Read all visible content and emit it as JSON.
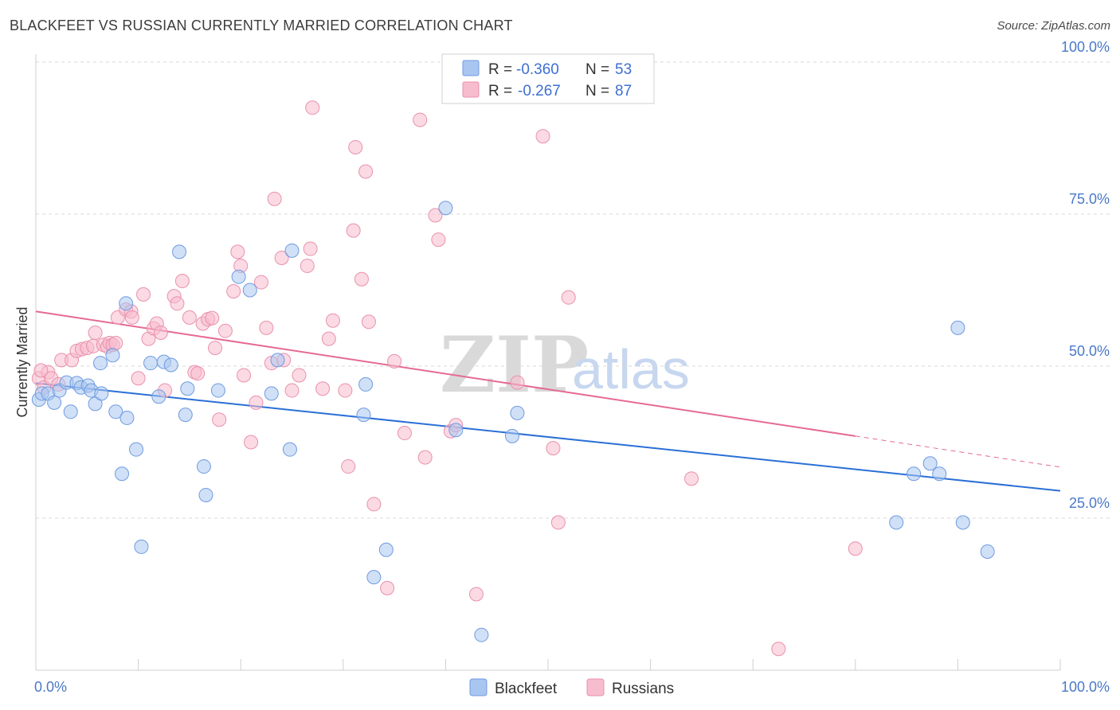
{
  "title": "BLACKFEET VS RUSSIAN CURRENTLY MARRIED CORRELATION CHART",
  "source": "Source: ZipAtlas.com",
  "watermark": {
    "zip": "ZIP",
    "atlas": "atlas"
  },
  "colors": {
    "blackfeet_fill": "#a9c6f0",
    "blackfeet_stroke": "#6f9be0",
    "blackfeet_line": "#2a6fd6",
    "russians_fill": "#f7bccd",
    "russians_stroke": "#e991ad",
    "russians_line": "#e56a95",
    "grid": "#d8d8d8",
    "tick_label": "#4a78c8"
  },
  "legend": {
    "rows": [
      {
        "r_label": "R =",
        "r_value": "-0.360",
        "n_label": "N =",
        "n_value": "53"
      },
      {
        "r_label": "R =",
        "r_value": "-0.267",
        "n_label": "N =",
        "n_value": "87"
      }
    ]
  },
  "chart_data": {
    "type": "scatter",
    "title": "BLACKFEET VS RUSSIAN CURRENTLY MARRIED CORRELATION CHART",
    "xlabel": "",
    "ylabel": "Currently Married",
    "xlim": [
      0,
      100
    ],
    "ylim": [
      0,
      100
    ],
    "x_tick_labels": [
      "0.0%",
      "100.0%"
    ],
    "y_tick_labels": [
      "25.0%",
      "50.0%",
      "75.0%",
      "100.0%"
    ],
    "y_ticks": [
      25,
      50,
      75,
      100
    ],
    "grid": true,
    "legend_position": "top-center",
    "series": [
      {
        "name": "Blackfeet",
        "r": -0.36,
        "n": 53,
        "trend": {
          "x": [
            0,
            100
          ],
          "y": [
            47.2,
            29.5
          ]
        },
        "points": [
          [
            0.3,
            44.5
          ],
          [
            0.6,
            45.5
          ],
          [
            1.2,
            45.5
          ],
          [
            1.8,
            44.0
          ],
          [
            2.3,
            46.0
          ],
          [
            3.0,
            47.3
          ],
          [
            3.4,
            42.5
          ],
          [
            4.0,
            47.2
          ],
          [
            4.4,
            46.5
          ],
          [
            5.1,
            46.8
          ],
          [
            5.4,
            46.0
          ],
          [
            5.8,
            43.8
          ],
          [
            6.4,
            45.5
          ],
          [
            6.3,
            50.5
          ],
          [
            7.5,
            51.8
          ],
          [
            7.8,
            42.5
          ],
          [
            8.4,
            32.3
          ],
          [
            8.9,
            41.5
          ],
          [
            8.8,
            60.3
          ],
          [
            9.8,
            36.3
          ],
          [
            10.3,
            20.3
          ],
          [
            11.2,
            50.5
          ],
          [
            12.0,
            45.0
          ],
          [
            12.5,
            50.7
          ],
          [
            13.2,
            50.2
          ],
          [
            14.0,
            68.8
          ],
          [
            14.6,
            42.0
          ],
          [
            14.8,
            46.3
          ],
          [
            16.4,
            33.5
          ],
          [
            16.6,
            28.8
          ],
          [
            17.8,
            46.0
          ],
          [
            19.8,
            64.7
          ],
          [
            20.9,
            62.5
          ],
          [
            23.0,
            45.5
          ],
          [
            23.6,
            51.0
          ],
          [
            24.8,
            36.3
          ],
          [
            25.0,
            69.0
          ],
          [
            32.0,
            42.0
          ],
          [
            32.2,
            47.0
          ],
          [
            33.0,
            15.3
          ],
          [
            34.2,
            19.8
          ],
          [
            40.0,
            76.0
          ],
          [
            41.0,
            39.5
          ],
          [
            43.5,
            5.8
          ],
          [
            46.5,
            38.5
          ],
          [
            47.0,
            42.3
          ],
          [
            84.0,
            24.3
          ],
          [
            85.7,
            32.3
          ],
          [
            87.3,
            34.0
          ],
          [
            88.2,
            32.3
          ],
          [
            90.0,
            56.3
          ],
          [
            90.5,
            24.3
          ],
          [
            92.9,
            19.5
          ]
        ]
      },
      {
        "name": "Russians",
        "r": -0.267,
        "n": 87,
        "trend": {
          "x": [
            0,
            80
          ],
          "y": [
            59.0,
            38.5
          ]
        },
        "trend_dashed": {
          "x": [
            80,
            100
          ],
          "y": [
            38.5,
            33.4
          ]
        },
        "points": [
          [
            0.3,
            48.0
          ],
          [
            0.8,
            46.5
          ],
          [
            1.2,
            49.0
          ],
          [
            1.5,
            48.0
          ],
          [
            2.2,
            47.0
          ],
          [
            2.5,
            51.0
          ],
          [
            3.5,
            51.0
          ],
          [
            4.0,
            52.5
          ],
          [
            4.5,
            52.8
          ],
          [
            5.0,
            53.0
          ],
          [
            5.6,
            53.3
          ],
          [
            5.8,
            55.5
          ],
          [
            6.6,
            53.5
          ],
          [
            7.0,
            53.2
          ],
          [
            7.2,
            53.8
          ],
          [
            7.5,
            53.5
          ],
          [
            7.8,
            53.8
          ],
          [
            8.0,
            58.0
          ],
          [
            8.8,
            59.3
          ],
          [
            9.3,
            59.0
          ],
          [
            9.4,
            58.0
          ],
          [
            10.0,
            48.0
          ],
          [
            10.5,
            61.8
          ],
          [
            11.0,
            54.5
          ],
          [
            11.5,
            56.2
          ],
          [
            11.8,
            57.0
          ],
          [
            12.2,
            55.5
          ],
          [
            12.6,
            46.0
          ],
          [
            13.5,
            61.5
          ],
          [
            13.8,
            60.3
          ],
          [
            14.3,
            64.0
          ],
          [
            15.0,
            58.0
          ],
          [
            15.5,
            49.0
          ],
          [
            15.8,
            48.8
          ],
          [
            16.3,
            57.0
          ],
          [
            16.8,
            57.7
          ],
          [
            17.2,
            57.9
          ],
          [
            17.5,
            53.0
          ],
          [
            17.9,
            41.2
          ],
          [
            18.5,
            55.8
          ],
          [
            19.3,
            62.3
          ],
          [
            19.7,
            68.8
          ],
          [
            20.0,
            66.5
          ],
          [
            20.3,
            48.5
          ],
          [
            21.0,
            37.5
          ],
          [
            21.5,
            44.0
          ],
          [
            22.0,
            63.8
          ],
          [
            22.5,
            56.3
          ],
          [
            23.0,
            50.5
          ],
          [
            23.3,
            77.5
          ],
          [
            24.0,
            67.8
          ],
          [
            24.2,
            51.0
          ],
          [
            25.0,
            46.0
          ],
          [
            25.7,
            48.5
          ],
          [
            26.5,
            66.5
          ],
          [
            26.8,
            69.3
          ],
          [
            27.0,
            92.5
          ],
          [
            28.0,
            46.3
          ],
          [
            28.6,
            54.5
          ],
          [
            29.0,
            57.5
          ],
          [
            30.2,
            46.0
          ],
          [
            30.5,
            33.5
          ],
          [
            31.0,
            72.3
          ],
          [
            31.2,
            86.0
          ],
          [
            31.8,
            64.3
          ],
          [
            32.2,
            82.0
          ],
          [
            32.5,
            57.3
          ],
          [
            33.0,
            27.3
          ],
          [
            34.3,
            13.5
          ],
          [
            35.0,
            50.8
          ],
          [
            36.0,
            39.0
          ],
          [
            37.5,
            90.5
          ],
          [
            38.0,
            35.0
          ],
          [
            39.0,
            74.8
          ],
          [
            39.3,
            70.8
          ],
          [
            40.5,
            39.3
          ],
          [
            41.0,
            40.3
          ],
          [
            43.0,
            12.5
          ],
          [
            47.0,
            47.3
          ],
          [
            49.5,
            87.8
          ],
          [
            50.5,
            36.5
          ],
          [
            51.0,
            24.3
          ],
          [
            52.0,
            61.3
          ],
          [
            64.0,
            31.5
          ],
          [
            72.5,
            3.5
          ],
          [
            80.0,
            20.0
          ],
          [
            0.5,
            49.3
          ]
        ]
      }
    ]
  },
  "bottom_legend": {
    "items": [
      "Blackfeet",
      "Russians"
    ]
  }
}
